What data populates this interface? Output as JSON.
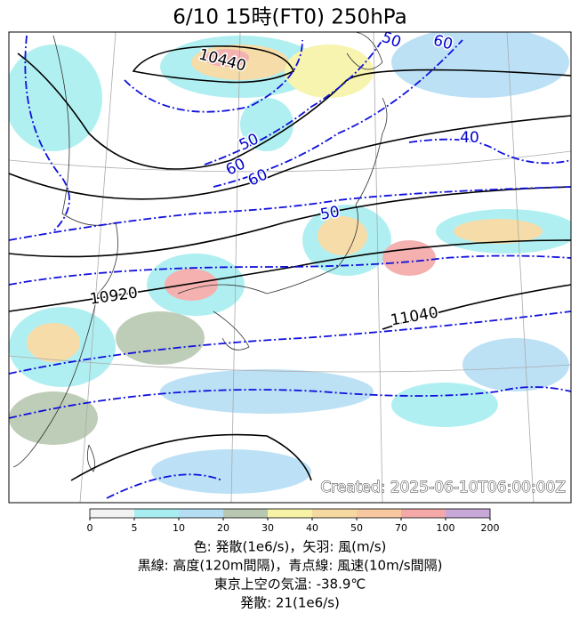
{
  "title": "6/10  15時(FT0)     250hPa",
  "map": {
    "contour_labels": [
      "10440",
      "50",
      "60",
      "50",
      "60",
      "60",
      "40",
      "50",
      "10920",
      "11040"
    ],
    "created": "Created: 2025-06-10T06:00:00Z"
  },
  "colorbar": {
    "ticks": [
      0,
      5,
      10,
      20,
      30,
      40,
      50,
      70,
      100,
      200
    ],
    "colors": [
      "#f2f2f2",
      "#a8eef0",
      "#b5def5",
      "#b8c8b0",
      "#f6f3a6",
      "#f6d9a0",
      "#f7c7a0",
      "#f5a8a8",
      "#c8a8d8"
    ]
  },
  "caption": [
    "色: 発散(1e6/s)，矢羽: 風(m/s)",
    "黒線: 高度(120m間隔)，青点線: 風速(10m/s間隔)",
    "東京上空の気温: -38.9℃",
    "発散: 21(1e6/s)"
  ]
}
